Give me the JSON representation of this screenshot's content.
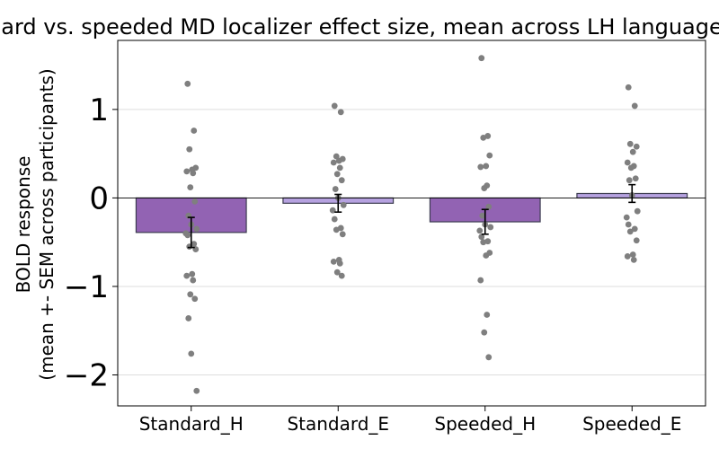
{
  "chart_data": {
    "type": "bar",
    "title": "Standard vs. speeded MD localizer effect size, mean across LH language ROIs",
    "xlabel": "",
    "ylabel_line1": "BOLD response",
    "ylabel_line2": "(mean +- SEM across participants)",
    "ylim": [
      -2.35,
      1.78
    ],
    "yticks": [
      1,
      0,
      -1,
      -2
    ],
    "ytick_labels": [
      "1",
      "0",
      "−1",
      "−2"
    ],
    "grid": true,
    "colors": {
      "dark_bar": "#9263b3",
      "light_bar": "#b6a2e0",
      "bar_edge": "#3c3c50",
      "point": "#7f7f7f",
      "errorbar": "#000000",
      "gridline": "#dddddd",
      "zero_line": "#000000"
    },
    "categories": [
      "Standard_H",
      "Standard_E",
      "Speeded_H",
      "Speeded_E"
    ],
    "values": [
      -0.39,
      -0.06,
      -0.27,
      0.05
    ],
    "sem": [
      0.17,
      0.1,
      0.14,
      0.1
    ],
    "bar_color_keys": [
      "dark_bar",
      "light_bar",
      "dark_bar",
      "light_bar"
    ],
    "points": [
      [
        1.29,
        0.76,
        0.55,
        0.34,
        0.32,
        0.3,
        0.28,
        0.12,
        -0.04,
        -0.2,
        -0.3,
        -0.35,
        -0.4,
        -0.42,
        -0.52,
        -0.55,
        -0.58,
        -0.86,
        -0.88,
        -0.93,
        -1.09,
        -1.14,
        -1.36,
        -1.76,
        -2.18
      ],
      [
        1.04,
        0.97,
        0.47,
        0.44,
        0.42,
        0.4,
        0.34,
        0.27,
        0.2,
        0.1,
        0.0,
        -0.08,
        -0.14,
        -0.24,
        -0.34,
        -0.36,
        -0.41,
        -0.7,
        -0.72,
        -0.74,
        -0.84,
        -0.88
      ],
      [
        1.58,
        0.7,
        0.68,
        0.48,
        0.36,
        0.35,
        0.14,
        0.11,
        -0.1,
        -0.2,
        -0.3,
        -0.33,
        -0.37,
        -0.44,
        -0.49,
        -0.5,
        -0.62,
        -0.65,
        -0.93,
        -1.32,
        -1.52,
        -1.8
      ],
      [
        1.25,
        1.04,
        0.61,
        0.58,
        0.52,
        0.4,
        0.36,
        0.34,
        0.22,
        0.2,
        0.03,
        -0.15,
        -0.22,
        -0.3,
        -0.35,
        -0.38,
        -0.48,
        -0.64,
        -0.66,
        -0.7
      ]
    ]
  }
}
